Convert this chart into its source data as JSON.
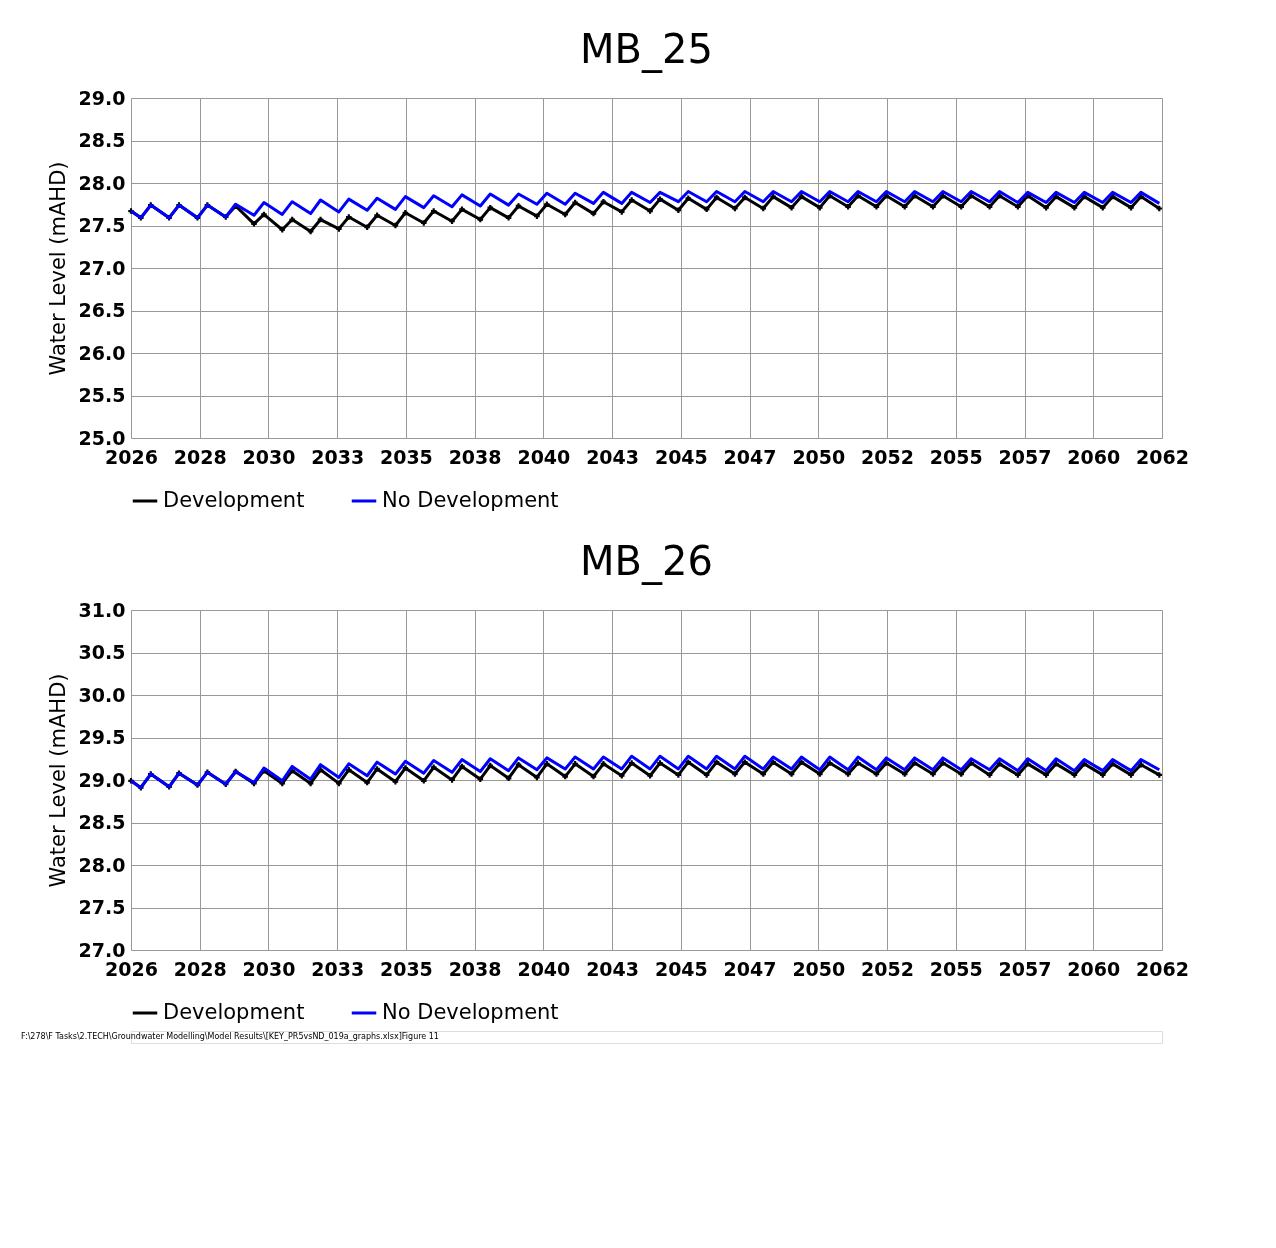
{
  "chart_data": [
    {
      "type": "line",
      "title": "MB_25",
      "ylabel": "Water Level (mAHD)",
      "grid": true,
      "legend": "bottom",
      "x": [
        "2026-01-01",
        "2026-05-08",
        "2026-09-13",
        "2027-05-08",
        "2027-09-13",
        "2028-05-08",
        "2028-09-13",
        "2029-05-08",
        "2029-09-13",
        "2030-05-08",
        "2030-09-13",
        "2031-05-08",
        "2031-09-13",
        "2032-05-08",
        "2032-09-13",
        "2033-05-08",
        "2033-09-13",
        "2034-05-08",
        "2034-09-13",
        "2035-05-08",
        "2035-09-13",
        "2036-05-08",
        "2036-09-13",
        "2037-05-08",
        "2037-09-13",
        "2038-05-08",
        "2038-09-13",
        "2039-05-08",
        "2039-09-13",
        "2040-05-08",
        "2040-09-13",
        "2041-05-08",
        "2041-09-13",
        "2042-05-08",
        "2042-09-13",
        "2043-05-08",
        "2043-09-13",
        "2044-05-08",
        "2044-09-13",
        "2045-05-08",
        "2045-09-13",
        "2046-05-08",
        "2046-09-13",
        "2047-05-08",
        "2047-09-13",
        "2048-05-08",
        "2048-09-13",
        "2049-05-08",
        "2049-09-13",
        "2050-05-08",
        "2050-09-13",
        "2051-05-08",
        "2051-09-13",
        "2052-05-08",
        "2052-09-13",
        "2053-05-08",
        "2053-09-13",
        "2054-05-08",
        "2054-09-13",
        "2055-05-08",
        "2055-09-13",
        "2056-05-08",
        "2056-09-13",
        "2057-05-08",
        "2057-09-13",
        "2058-05-08",
        "2058-09-13",
        "2059-05-08",
        "2059-09-13",
        "2060-05-08",
        "2060-09-13",
        "2061-05-08",
        "2061-09-13",
        "2062-05-08"
      ],
      "xlim": [
        "2026-01-01",
        "2062-06-12"
      ],
      "xticks": [
        {
          "value": "2026-01-01",
          "label": "2026"
        },
        {
          "value": "2028-06-06",
          "label": "2028"
        },
        {
          "value": "2030-11-10",
          "label": "2030"
        },
        {
          "value": "2033-04-16",
          "label": "2033"
        },
        {
          "value": "2035-09-20",
          "label": "2035"
        },
        {
          "value": "2038-02-23",
          "label": "2038"
        },
        {
          "value": "2040-07-30",
          "label": "2040"
        },
        {
          "value": "2043-01-03",
          "label": "2043"
        },
        {
          "value": "2045-06-09",
          "label": "2045"
        },
        {
          "value": "2047-11-13",
          "label": "2047"
        },
        {
          "value": "2050-04-19",
          "label": "2050"
        },
        {
          "value": "2052-09-22",
          "label": "2052"
        },
        {
          "value": "2055-02-26",
          "label": "2055"
        },
        {
          "value": "2057-08-02",
          "label": "2057"
        },
        {
          "value": "2060-01-06",
          "label": "2060"
        },
        {
          "value": "2062-06-12",
          "label": "2062"
        }
      ],
      "ylim": [
        25.0,
        29.0
      ],
      "yticks": [
        {
          "value": 25,
          "label": "25.0"
        },
        25.5,
        {
          "value": 26,
          "label": "26.0"
        },
        26.5,
        {
          "value": 27,
          "label": "27.0"
        },
        27.5,
        {
          "value": 28,
          "label": "28.0"
        },
        28.5,
        {
          "value": 29,
          "label": "29.0"
        }
      ],
      "series": [
        {
          "name": "Development",
          "color": "#000000",
          "marker": "cross",
          "values": [
            27.67,
            27.59,
            27.74,
            27.59,
            27.74,
            27.59,
            27.74,
            27.6,
            27.73,
            27.52,
            27.63,
            27.45,
            27.57,
            27.43,
            27.57,
            27.46,
            27.6,
            27.48,
            27.62,
            27.5,
            27.65,
            27.53,
            27.67,
            27.55,
            27.69,
            27.57,
            27.71,
            27.59,
            27.73,
            27.61,
            27.75,
            27.63,
            27.77,
            27.64,
            27.78,
            27.66,
            27.8,
            27.67,
            27.81,
            27.68,
            27.82,
            27.69,
            27.83,
            27.7,
            27.83,
            27.7,
            27.84,
            27.71,
            27.84,
            27.71,
            27.85,
            27.72,
            27.85,
            27.72,
            27.85,
            27.72,
            27.85,
            27.72,
            27.85,
            27.72,
            27.85,
            27.72,
            27.85,
            27.72,
            27.85,
            27.71,
            27.84,
            27.71,
            27.84,
            27.71,
            27.84,
            27.71,
            27.84,
            27.7
          ]
        },
        {
          "name": "No Development",
          "color": "#0000ff",
          "marker": "none",
          "values": [
            27.67,
            27.59,
            27.74,
            27.59,
            27.74,
            27.59,
            27.74,
            27.6,
            27.75,
            27.62,
            27.77,
            27.63,
            27.78,
            27.64,
            27.8,
            27.66,
            27.81,
            27.68,
            27.82,
            27.69,
            27.84,
            27.71,
            27.85,
            27.72,
            27.86,
            27.73,
            27.87,
            27.74,
            27.87,
            27.75,
            27.88,
            27.75,
            27.88,
            27.76,
            27.89,
            27.76,
            27.89,
            27.77,
            27.89,
            27.78,
            27.9,
            27.78,
            27.9,
            27.78,
            27.9,
            27.78,
            27.9,
            27.78,
            27.9,
            27.78,
            27.9,
            27.78,
            27.9,
            27.78,
            27.9,
            27.78,
            27.9,
            27.78,
            27.9,
            27.78,
            27.9,
            27.78,
            27.9,
            27.77,
            27.89,
            27.77,
            27.89,
            27.77,
            27.89,
            27.77,
            27.89,
            27.77,
            27.89,
            27.76
          ]
        }
      ]
    },
    {
      "type": "line",
      "title": "MB_26",
      "ylabel": "Water Level (mAHD)",
      "grid": true,
      "legend": "bottom",
      "annotations": [
        "F:\\278\\F Tasks\\2.TECH\\Groundwater Modelling\\Model Results\\[KEY_PR5vsND_019a_graphs.xlsx]Figure 11"
      ],
      "x": [
        "2026-01-01",
        "2026-05-08",
        "2026-09-13",
        "2027-05-08",
        "2027-09-13",
        "2028-05-08",
        "2028-09-13",
        "2029-05-08",
        "2029-09-13",
        "2030-05-08",
        "2030-09-13",
        "2031-05-08",
        "2031-09-13",
        "2032-05-08",
        "2032-09-13",
        "2033-05-08",
        "2033-09-13",
        "2034-05-08",
        "2034-09-13",
        "2035-05-08",
        "2035-09-13",
        "2036-05-08",
        "2036-09-13",
        "2037-05-08",
        "2037-09-13",
        "2038-05-08",
        "2038-09-13",
        "2039-05-08",
        "2039-09-13",
        "2040-05-08",
        "2040-09-13",
        "2041-05-08",
        "2041-09-13",
        "2042-05-08",
        "2042-09-13",
        "2043-05-08",
        "2043-09-13",
        "2044-05-08",
        "2044-09-13",
        "2045-05-08",
        "2045-09-13",
        "2046-05-08",
        "2046-09-13",
        "2047-05-08",
        "2047-09-13",
        "2048-05-08",
        "2048-09-13",
        "2049-05-08",
        "2049-09-13",
        "2050-05-08",
        "2050-09-13",
        "2051-05-08",
        "2051-09-13",
        "2052-05-08",
        "2052-09-13",
        "2053-05-08",
        "2053-09-13",
        "2054-05-08",
        "2054-09-13",
        "2055-05-08",
        "2055-09-13",
        "2056-05-08",
        "2056-09-13",
        "2057-05-08",
        "2057-09-13",
        "2058-05-08",
        "2058-09-13",
        "2059-05-08",
        "2059-09-13",
        "2060-05-08",
        "2060-09-13",
        "2061-05-08",
        "2061-09-13",
        "2062-05-08"
      ],
      "xlim": [
        "2026-01-01",
        "2062-06-12"
      ],
      "xticks": [
        {
          "value": "2026-01-01",
          "label": "2026"
        },
        {
          "value": "2028-06-06",
          "label": "2028"
        },
        {
          "value": "2030-11-10",
          "label": "2030"
        },
        {
          "value": "2033-04-16",
          "label": "2033"
        },
        {
          "value": "2035-09-20",
          "label": "2035"
        },
        {
          "value": "2038-02-23",
          "label": "2038"
        },
        {
          "value": "2040-07-30",
          "label": "2040"
        },
        {
          "value": "2043-01-03",
          "label": "2043"
        },
        {
          "value": "2045-06-09",
          "label": "2045"
        },
        {
          "value": "2047-11-13",
          "label": "2047"
        },
        {
          "value": "2050-04-19",
          "label": "2050"
        },
        {
          "value": "2052-09-22",
          "label": "2052"
        },
        {
          "value": "2055-02-26",
          "label": "2055"
        },
        {
          "value": "2057-08-02",
          "label": "2057"
        },
        {
          "value": "2060-01-06",
          "label": "2060"
        },
        {
          "value": "2062-06-12",
          "label": "2062"
        }
      ],
      "ylim": [
        27.0,
        31.0
      ],
      "yticks": [
        {
          "value": 27,
          "label": "27.0"
        },
        27.5,
        {
          "value": 28,
          "label": "28.0"
        },
        28.5,
        {
          "value": 29,
          "label": "29.0"
        },
        29.5,
        {
          "value": 30,
          "label": "30.0"
        },
        30.5,
        {
          "value": 31,
          "label": "31.0"
        }
      ],
      "series": [
        {
          "name": "Development",
          "color": "#000000",
          "marker": "cross",
          "values": [
            28.99,
            28.91,
            29.07,
            28.92,
            29.08,
            28.94,
            29.09,
            28.95,
            29.1,
            28.96,
            29.11,
            28.96,
            29.11,
            28.96,
            29.12,
            28.96,
            29.12,
            28.97,
            29.13,
            28.98,
            29.14,
            28.99,
            29.15,
            29.0,
            29.16,
            29.01,
            29.17,
            29.02,
            29.18,
            29.03,
            29.19,
            29.04,
            29.19,
            29.04,
            29.19,
            29.05,
            29.2,
            29.05,
            29.2,
            29.06,
            29.21,
            29.06,
            29.21,
            29.07,
            29.21,
            29.07,
            29.21,
            29.07,
            29.21,
            29.07,
            29.2,
            29.07,
            29.2,
            29.07,
            29.2,
            29.07,
            29.2,
            29.07,
            29.2,
            29.07,
            29.2,
            29.06,
            29.19,
            29.06,
            29.19,
            29.06,
            29.19,
            29.06,
            29.19,
            29.06,
            29.19,
            29.06,
            29.18,
            29.06
          ]
        },
        {
          "name": "No Development",
          "color": "#0000ff",
          "marker": "none",
          "values": [
            28.99,
            28.91,
            29.07,
            28.92,
            29.08,
            28.94,
            29.09,
            28.95,
            29.1,
            28.97,
            29.14,
            28.99,
            29.16,
            29.01,
            29.18,
            29.03,
            29.19,
            29.05,
            29.21,
            29.07,
            29.22,
            29.08,
            29.23,
            29.09,
            29.24,
            29.1,
            29.25,
            29.11,
            29.26,
            29.12,
            29.26,
            29.13,
            29.27,
            29.13,
            29.27,
            29.13,
            29.28,
            29.13,
            29.28,
            29.13,
            29.28,
            29.13,
            29.28,
            29.13,
            29.28,
            29.13,
            29.27,
            29.13,
            29.27,
            29.12,
            29.27,
            29.12,
            29.27,
            29.12,
            29.26,
            29.12,
            29.26,
            29.12,
            29.26,
            29.12,
            29.25,
            29.12,
            29.25,
            29.11,
            29.25,
            29.11,
            29.25,
            29.11,
            29.24,
            29.11,
            29.24,
            29.11,
            29.24,
            29.12
          ]
        }
      ]
    }
  ]
}
